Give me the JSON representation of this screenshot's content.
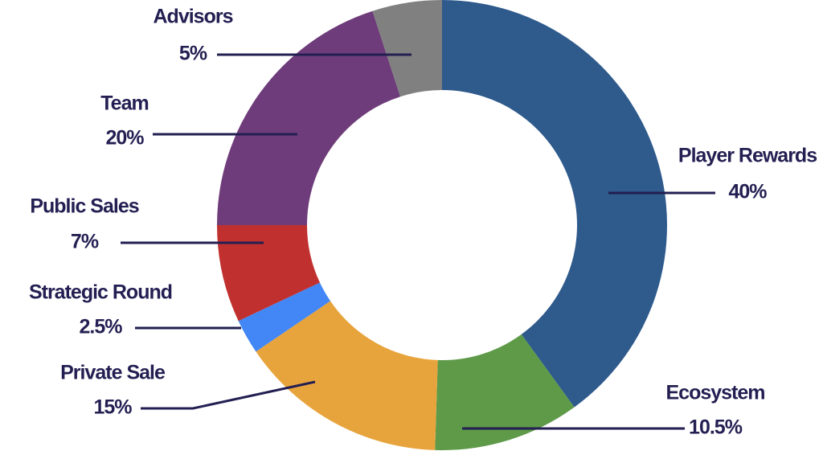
{
  "chart_data": {
    "type": "donut",
    "categories": [
      "Player Rewards",
      "Ecosystem",
      "Private Sale",
      "Strategic Round",
      "Public Sales",
      "Team",
      "Advisors"
    ],
    "values": [
      40,
      10.5,
      15,
      2.5,
      7,
      20,
      5
    ],
    "value_labels": [
      "40%",
      "10.5%",
      "15%",
      "2.5%",
      "7%",
      "20%",
      "5%"
    ],
    "colors": [
      "#2e5a8c",
      "#5e9a48",
      "#e8a43c",
      "#4287f5",
      "#c0302e",
      "#6e3c7a",
      "#808080"
    ]
  }
}
